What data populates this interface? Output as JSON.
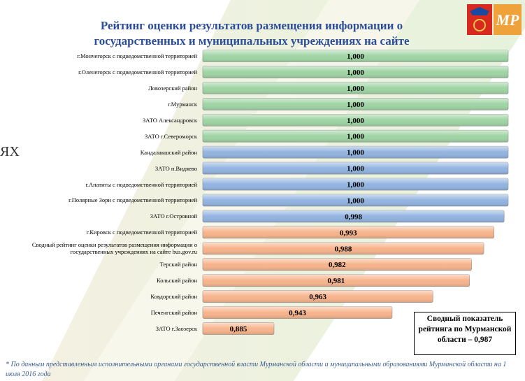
{
  "chart_data": {
    "type": "bar",
    "orientation": "horizontal",
    "title": "Рейтинг оценки результатов размещения информации о государственных и муниципальных учреждениях на сайте",
    "categories": [
      "г.Мончегорск с подведомственной территорией",
      "г.Оленегорск с подведомственной территорией",
      "Ловозерский район",
      "г.Мурманск",
      "ЗАТО Александровск",
      "ЗАТО г.Североморск",
      "Кандалакшский район",
      "ЗАТО п.Видяево",
      "г.Апатиты с подведомственной территорией",
      "г.Полярные Зори с подведомственной территорией",
      "ЗАТО г.Островной",
      "г.Кировск с подведомственной территорией",
      "Сводный рейтинг оценки результатов размещения информации о государственных учреждениях на сайте bus.gov.ru",
      "Терский район",
      "Кольский район",
      "Ковдорский район",
      "Печенгский район",
      "ЗАТО г.Заозерск"
    ],
    "values": [
      1.0,
      1.0,
      1.0,
      1.0,
      1.0,
      1.0,
      1.0,
      1.0,
      1.0,
      1.0,
      0.998,
      0.993,
      0.988,
      0.982,
      0.981,
      0.963,
      0.943,
      0.885
    ],
    "value_labels": [
      "1,000",
      "1,000",
      "1,000",
      "1,000",
      "1,000",
      "1,000",
      "1,000",
      "1,000",
      "1,000",
      "1,000",
      "0,998",
      "0,993",
      "0,988",
      "0,982",
      "0,981",
      "0,963",
      "0,943",
      "0,885"
    ],
    "colors": [
      "#9fd4a4",
      "#9fd4a4",
      "#9fd4a4",
      "#9fd4a4",
      "#9fd4a4",
      "#9fd4a4",
      "#92b4e0",
      "#92b4e0",
      "#92b4e0",
      "#92b4e0",
      "#92b4e0",
      "#f7b48c",
      "#f7b48c",
      "#f7b48c",
      "#f7b48c",
      "#f7b48c",
      "#f7b48c",
      "#f7b48c"
    ],
    "xlim": [
      0.85,
      1.0
    ],
    "annotation": "Сводный показатель рейтинга по Мурманской области – 0,987",
    "footnote": "* По данным представленным исполнительными органами государственной власти Мурманской области и муниципальными образованиями Мурманской области на 1 июля 2016 года",
    "background_fragment": "ЯХ",
    "logo_text": "МР"
  }
}
